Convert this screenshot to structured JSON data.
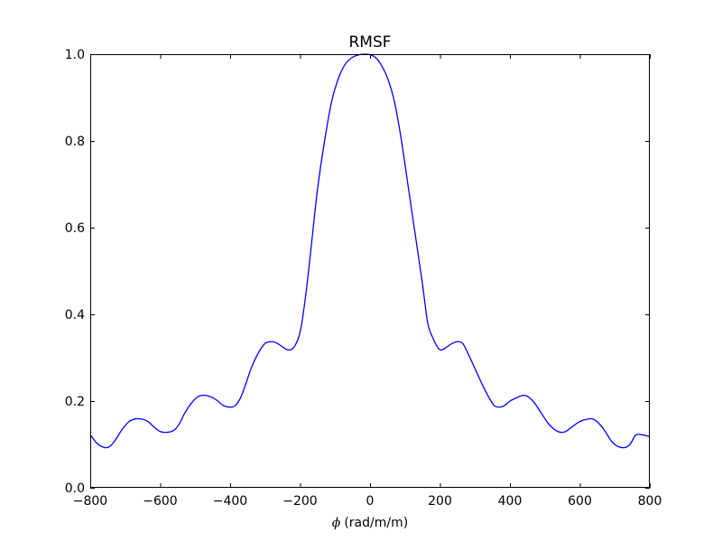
{
  "chart_data": {
    "type": "line",
    "title": "RMSF",
    "xlabel_symbol": "ϕ",
    "xlabel": "(rad/m/m)",
    "ylabel": "",
    "xlim": [
      -800,
      800
    ],
    "ylim": [
      0.0,
      1.0
    ],
    "x_ticks": [
      -800,
      -600,
      -400,
      -200,
      0,
      200,
      400,
      600,
      800
    ],
    "x_tick_labels": [
      "−800",
      "−600",
      "−400",
      "−200",
      "0",
      "200",
      "400",
      "600",
      "800"
    ],
    "y_ticks": [
      0.0,
      0.2,
      0.4,
      0.6,
      0.8,
      1.0
    ],
    "y_tick_labels": [
      "0.0",
      "0.2",
      "0.4",
      "0.6",
      "0.8",
      "1.0"
    ],
    "grid": false,
    "legend": "none",
    "series": [
      {
        "color": "#0000ff",
        "x": [
          -800,
          -780,
          -760,
          -745,
          -730,
          -710,
          -690,
          -670,
          -650,
          -635,
          -620,
          -600,
          -580,
          -560,
          -545,
          -530,
          -510,
          -490,
          -470,
          -450,
          -435,
          -420,
          -400,
          -385,
          -370,
          -355,
          -340,
          -320,
          -300,
          -280,
          -265,
          -250,
          -235,
          -220,
          -205,
          -195,
          -180,
          -165,
          -150,
          -130,
          -110,
          -90,
          -70,
          -50,
          -30,
          -15,
          0,
          15,
          30,
          50,
          70,
          90,
          110,
          130,
          150,
          165,
          180,
          195,
          205,
          220,
          235,
          250,
          265,
          280,
          300,
          320,
          340,
          355,
          370,
          385,
          400,
          420,
          435,
          450,
          470,
          490,
          510,
          530,
          545,
          560,
          580,
          600,
          620,
          635,
          650,
          670,
          690,
          710,
          730,
          745,
          760,
          780,
          800
        ],
        "y": [
          0.122,
          0.102,
          0.093,
          0.095,
          0.108,
          0.133,
          0.152,
          0.159,
          0.158,
          0.153,
          0.142,
          0.13,
          0.128,
          0.133,
          0.148,
          0.172,
          0.196,
          0.211,
          0.213,
          0.208,
          0.2,
          0.19,
          0.186,
          0.19,
          0.208,
          0.24,
          0.275,
          0.31,
          0.333,
          0.337,
          0.333,
          0.325,
          0.318,
          0.322,
          0.345,
          0.38,
          0.47,
          0.58,
          0.69,
          0.8,
          0.89,
          0.945,
          0.978,
          0.993,
          0.999,
          1.0,
          0.999,
          0.993,
          0.978,
          0.945,
          0.89,
          0.8,
          0.69,
          0.58,
          0.47,
          0.38,
          0.345,
          0.322,
          0.318,
          0.325,
          0.333,
          0.337,
          0.333,
          0.31,
          0.275,
          0.24,
          0.208,
          0.19,
          0.186,
          0.19,
          0.2,
          0.208,
          0.213,
          0.211,
          0.196,
          0.172,
          0.148,
          0.133,
          0.128,
          0.13,
          0.142,
          0.153,
          0.158,
          0.159,
          0.152,
          0.133,
          0.108,
          0.095,
          0.093,
          0.102,
          0.122,
          0.122,
          0.118
        ]
      }
    ]
  }
}
